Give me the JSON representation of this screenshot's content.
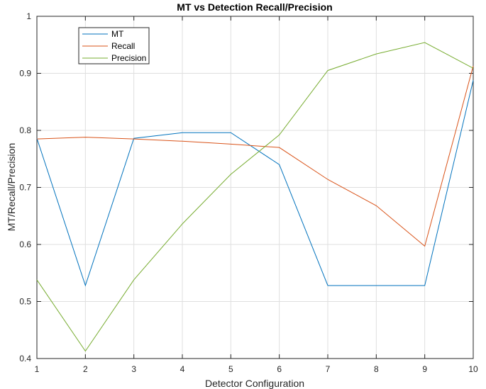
{
  "chart_data": {
    "type": "line",
    "title": "MT vs Detection Recall/Precision",
    "xlabel": "Detector Configuration",
    "ylabel": "MT/Recall/Precision",
    "x": [
      1,
      2,
      3,
      4,
      5,
      6,
      7,
      8,
      9,
      10
    ],
    "xlim": [
      1,
      10
    ],
    "ylim": [
      0.4,
      1.0
    ],
    "xticks": [
      "1",
      "2",
      "3",
      "4",
      "5",
      "6",
      "7",
      "8",
      "9",
      "10"
    ],
    "yticks": [
      "0.4",
      "0.5",
      "0.6",
      "0.7",
      "0.8",
      "0.9",
      "1"
    ],
    "grid": true,
    "legend_position": "top-left",
    "series": [
      {
        "name": "MT",
        "color": "#0072BD",
        "values": [
          0.786,
          0.528,
          0.786,
          0.796,
          0.796,
          0.74,
          0.528,
          0.528,
          0.528,
          0.888
        ]
      },
      {
        "name": "Recall",
        "color": "#D95319",
        "values": [
          0.785,
          0.788,
          0.785,
          0.781,
          0.776,
          0.77,
          0.714,
          0.668,
          0.597,
          0.913
        ]
      },
      {
        "name": "Precision",
        "color": "#77AC30",
        "values": [
          0.538,
          0.413,
          0.538,
          0.636,
          0.723,
          0.792,
          0.905,
          0.934,
          0.954,
          0.909
        ]
      }
    ]
  }
}
